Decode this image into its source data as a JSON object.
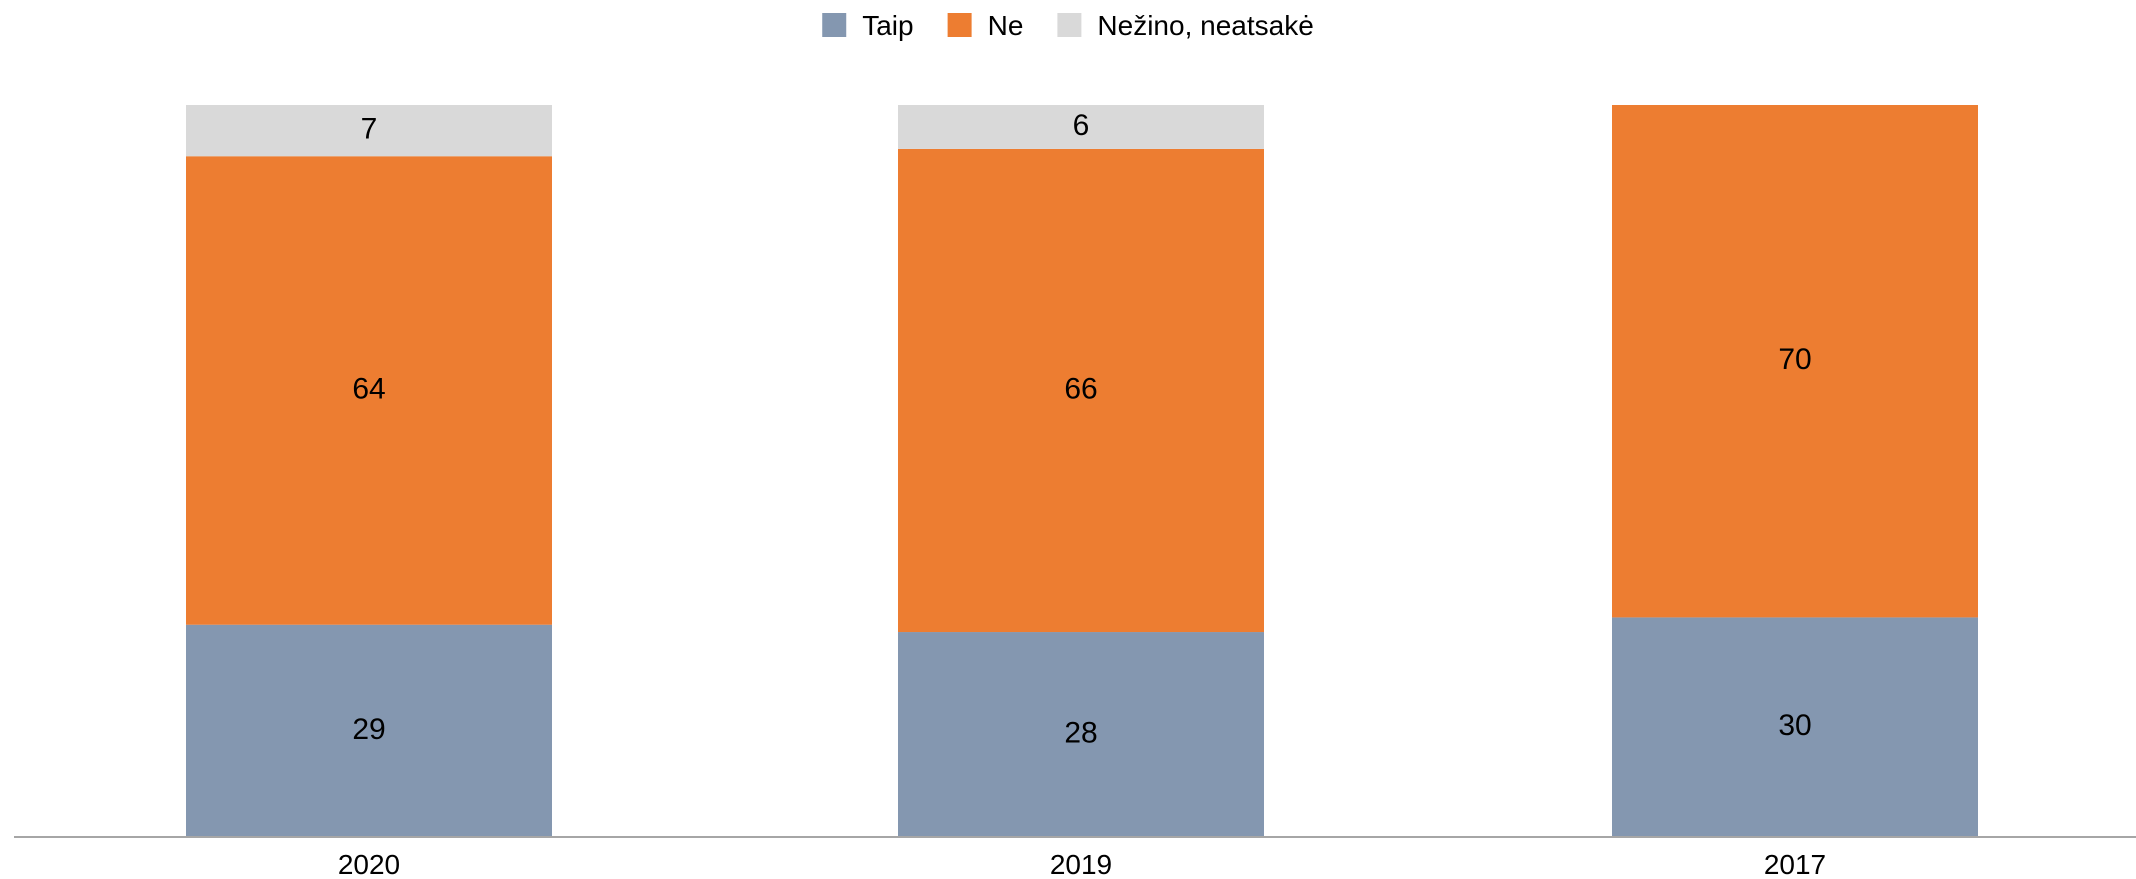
{
  "chart_data": {
    "type": "bar",
    "stacked": true,
    "categories": [
      "2020",
      "2019",
      "2017"
    ],
    "series": [
      {
        "name": "Taip",
        "color": "#8497B0",
        "values": [
          29,
          28,
          30
        ]
      },
      {
        "name": "Ne",
        "color": "#ED7D31",
        "values": [
          64,
          66,
          70
        ]
      },
      {
        "name": "Nežino, neatsakė",
        "color": "#D9D9D9",
        "values": [
          7,
          6,
          0
        ]
      }
    ],
    "data_labels": [
      [
        "29",
        "28",
        "30"
      ],
      [
        "64",
        "66",
        "70"
      ],
      [
        "7",
        "6",
        ""
      ]
    ],
    "ylim": [
      0,
      100
    ],
    "legend_position": "top-center",
    "grid": false,
    "axis_color": "#A6A6A6"
  }
}
